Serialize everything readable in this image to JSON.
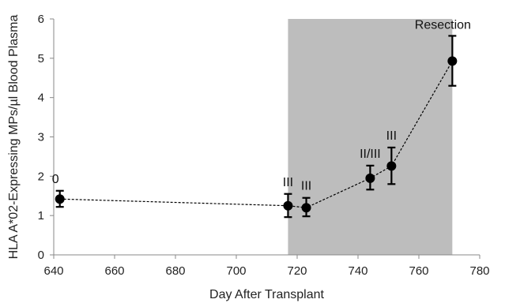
{
  "chart_data": {
    "type": "scatter",
    "title": "",
    "xlabel": "Day After Transplant",
    "ylabel": "HLA A*02-Expressing MPs/µl Blood Plasma",
    "xlim": [
      640,
      780
    ],
    "ylim": [
      0,
      6
    ],
    "xticks": [
      640,
      660,
      680,
      700,
      720,
      740,
      760,
      780
    ],
    "yticks": [
      0,
      1,
      2,
      3,
      4,
      5,
      6
    ],
    "grid": false,
    "legend": "none",
    "shaded_region": {
      "x": [
        717,
        771
      ],
      "color": "#bdbdbd"
    },
    "series": [
      {
        "line_style": "dashed",
        "color": "#000000",
        "points": [
          {
            "x": 642,
            "y": 1.42,
            "err_low": 1.22,
            "err_high": 1.63,
            "label": "0"
          },
          {
            "x": 717,
            "y": 1.25,
            "err_low": 0.96,
            "err_high": 1.55,
            "label": "III"
          },
          {
            "x": 723,
            "y": 1.2,
            "err_low": 0.98,
            "err_high": 1.45,
            "label": "III"
          },
          {
            "x": 744,
            "y": 1.95,
            "err_low": 1.66,
            "err_high": 2.27,
            "label": "II/III"
          },
          {
            "x": 751,
            "y": 2.26,
            "err_low": 1.8,
            "err_high": 2.73,
            "label": "III"
          },
          {
            "x": 771,
            "y": 4.93,
            "err_low": 4.3,
            "err_high": 5.57,
            "label": "Resection"
          }
        ]
      }
    ]
  }
}
